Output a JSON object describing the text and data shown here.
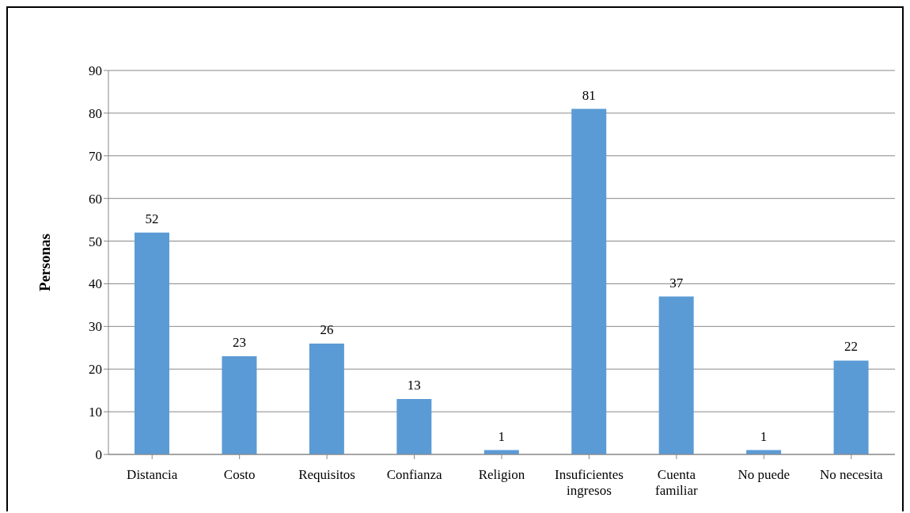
{
  "chart_data": {
    "type": "bar",
    "ylabel": "Personas",
    "categories": [
      "Distancia",
      "Costo",
      "Requisitos",
      "Confianza",
      "Religion",
      "Insuficientes ingresos",
      "Cuenta familiar",
      "No puede",
      "No necesita"
    ],
    "values": [
      52,
      23,
      26,
      13,
      1,
      81,
      37,
      1,
      22
    ],
    "color": "#5b9bd5",
    "ylim": [
      0,
      90
    ],
    "yticks": [
      0,
      10,
      20,
      30,
      40,
      50,
      60,
      70,
      80,
      90
    ],
    "grid": "y",
    "data_labels": true,
    "legend": false
  }
}
